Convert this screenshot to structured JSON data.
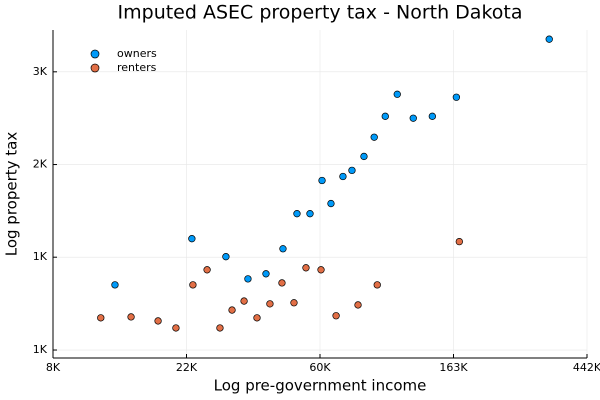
{
  "chart_data": {
    "type": "scatter",
    "title": "Imputed ASEC property tax - North Dakota",
    "x_label": "Log pre-government income",
    "y_label": "Log property tax",
    "xlog": true,
    "ylog": true,
    "grid": true,
    "legend": "top-left",
    "xlim": [
      8103,
      442413
    ],
    "ylim": [
      637,
      3735
    ],
    "xticks": [
      {
        "value": 8103,
        "label": "8K"
      },
      {
        "value": 22026,
        "label": "22K"
      },
      {
        "value": 59874,
        "label": "60K"
      },
      {
        "value": 162755,
        "label": "163K"
      },
      {
        "value": 442413,
        "label": "442K"
      }
    ],
    "yticks": [
      {
        "value": 665,
        "label": "1K"
      },
      {
        "value": 1097,
        "label": "1K"
      },
      {
        "value": 1808,
        "label": "2K"
      },
      {
        "value": 2981,
        "label": "3K"
      }
    ],
    "series": [
      {
        "name": "owners",
        "color": "#009af9",
        "x": [
          12890,
          22930,
          29590,
          34900,
          39950,
          45370,
          50390,
          55550,
          60790,
          65000,
          71100,
          76070,
          83230,
          89860,
          97630,
          106800,
          120400,
          138900,
          166300,
          333400
        ],
        "values": [
          945,
          1212,
          1100,
          976,
          1003,
          1148,
          1387,
          1387,
          1659,
          1465,
          1695,
          1752,
          1889,
          2095,
          2345,
          2641,
          2321,
          2345,
          2599,
          3554
        ]
      },
      {
        "name": "renters",
        "color": "#e26f46",
        "x": [
          11590,
          14540,
          17800,
          20350,
          23110,
          25700,
          28300,
          30980,
          33900,
          37350,
          41150,
          45030,
          49270,
          53900,
          60330,
          67540,
          79600,
          91930,
          170000
        ],
        "values": [
          791,
          795,
          778,
          749,
          945,
          1025,
          749,
          825,
          866,
          791,
          853,
          955,
          858,
          1036,
          1025,
          800,
          848,
          945,
          1193
        ]
      }
    ]
  }
}
